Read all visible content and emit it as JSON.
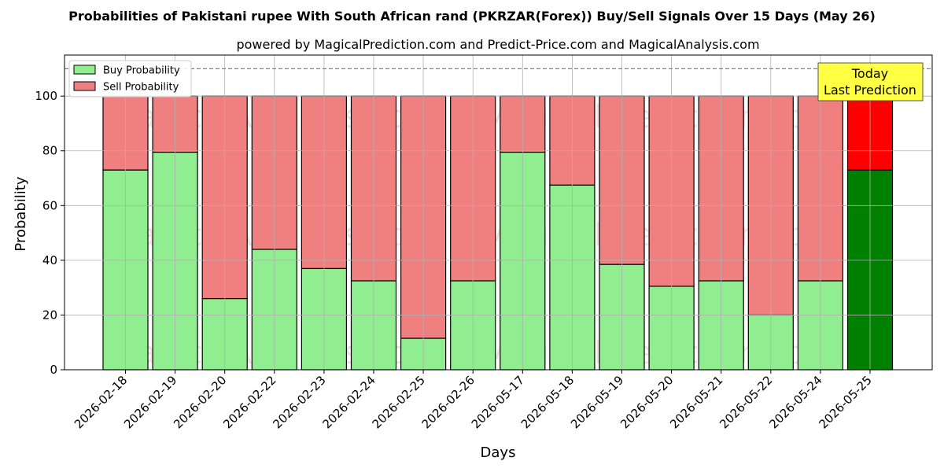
{
  "chart_data": {
    "type": "bar",
    "stacked": true,
    "title": "Probabilities of Pakistani rupee With South African rand (PKRZAR(Forex)) Buy/Sell Signals Over 15 Days (May 26)",
    "subtitle": "powered by MagicalPrediction.com and Predict-Price.com and MagicalAnalysis.com",
    "xlabel": "Days",
    "ylabel": "Probability",
    "ylim": [
      0,
      115
    ],
    "yticks": [
      0,
      20,
      40,
      60,
      80,
      100
    ],
    "reference_line": 110,
    "grid": true,
    "legend_position": "top-left",
    "categories": [
      "2026-02-18",
      "2026-02-19",
      "2026-02-20",
      "2026-02-22",
      "2026-02-23",
      "2026-02-24",
      "2026-02-25",
      "2026-02-26",
      "2026-05-17",
      "2026-05-18",
      "2026-05-19",
      "2026-05-20",
      "2026-05-21",
      "2026-05-22",
      "2026-05-24",
      "2026-05-25"
    ],
    "series": [
      {
        "name": "Buy Probability",
        "color": "#90ee90",
        "highlight_color": "#008000",
        "values": [
          73,
          79.5,
          26,
          44,
          37,
          32.5,
          11.5,
          32.5,
          79.5,
          67.5,
          38.5,
          30.5,
          32.5,
          20,
          32.5,
          73
        ]
      },
      {
        "name": "Sell Probability",
        "color": "#f08080",
        "highlight_color": "#ff0000",
        "values": [
          27,
          20.5,
          74,
          56,
          63,
          67.5,
          88.5,
          67.5,
          20.5,
          32.5,
          61.5,
          69.5,
          67.5,
          80,
          67.5,
          27
        ]
      }
    ],
    "highlight_index": 15,
    "annotation": {
      "line1": "Today",
      "line2": "Last Prediction",
      "color": "#ffff44"
    },
    "watermarks": [
      "MagicalAnalysis.com",
      "MagicalPrediction.com"
    ]
  }
}
